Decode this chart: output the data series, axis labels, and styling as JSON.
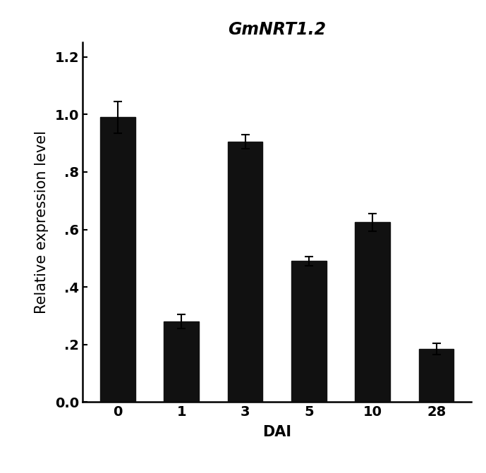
{
  "title": "GmNRT1.2",
  "xlabel": "DAI",
  "ylabel": "Relative expression level",
  "categories": [
    "0",
    "1",
    "3",
    "5",
    "10",
    "28"
  ],
  "values": [
    0.99,
    0.28,
    0.905,
    0.49,
    0.625,
    0.185
  ],
  "errors": [
    0.055,
    0.025,
    0.025,
    0.015,
    0.03,
    0.02
  ],
  "bar_color": "#111111",
  "bar_edge_color": "#111111",
  "ylim": [
    0,
    1.25
  ],
  "yticks": [
    0.0,
    0.2,
    0.4,
    0.6,
    0.8,
    1.0,
    1.2
  ],
  "ytick_labels": [
    "0.0",
    ".2",
    ".4",
    ".6",
    ".8",
    "1.0",
    "1.2"
  ],
  "background_color": "#ffffff",
  "title_fontsize": 17,
  "axis_label_fontsize": 15,
  "tick_fontsize": 14,
  "bar_width": 0.55,
  "capsize": 4
}
